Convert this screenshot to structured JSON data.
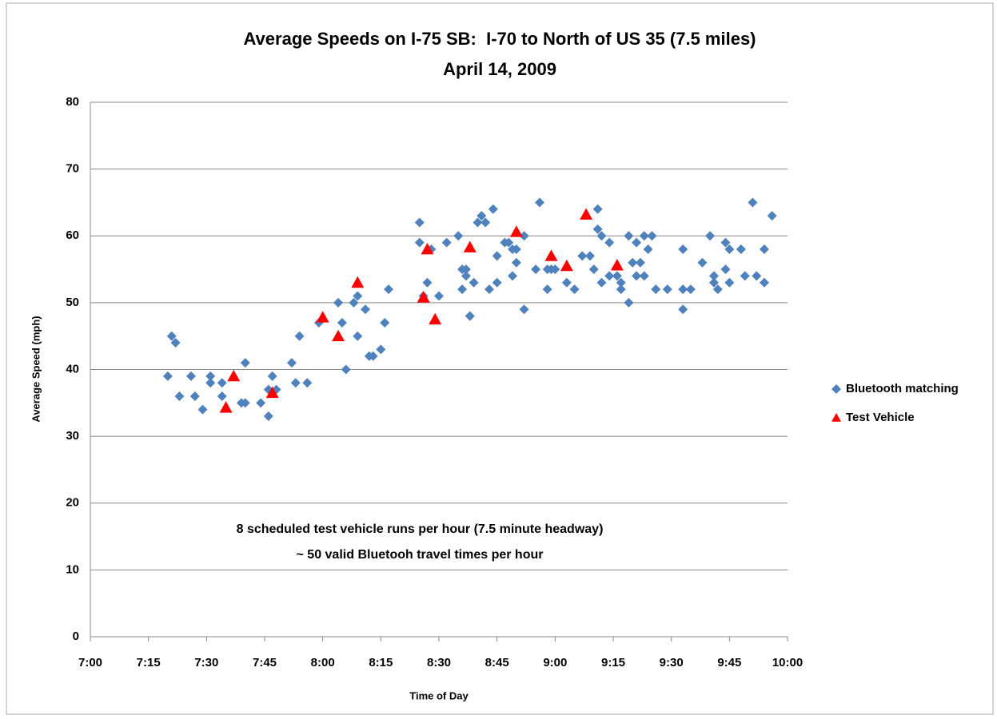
{
  "chart_data": {
    "type": "scatter",
    "title": "Average Speeds on I-75 SB:  I-70 to North of US 35 (7.5 miles)",
    "subtitle": "April 14, 2009",
    "x_label": "Time of Day",
    "y_label": "Average Speed (mph)",
    "annotations": [
      "8 scheduled test vehicle runs per hour (7.5 minute headway)",
      "~ 50 valid Bluetooh travel times per hour"
    ],
    "xlim": [
      420,
      600
    ],
    "xticks": [
      {
        "value": 420,
        "label": "7:00"
      },
      {
        "value": 435,
        "label": "7:15"
      },
      {
        "value": 450,
        "label": "7:30"
      },
      {
        "value": 465,
        "label": "7:45"
      },
      {
        "value": 480,
        "label": "8:00"
      },
      {
        "value": 495,
        "label": "8:15"
      },
      {
        "value": 510,
        "label": "8:30"
      },
      {
        "value": 525,
        "label": "8:45"
      },
      {
        "value": 540,
        "label": "9:00"
      },
      {
        "value": 555,
        "label": "9:15"
      },
      {
        "value": 570,
        "label": "9:30"
      },
      {
        "value": 585,
        "label": "9:45"
      },
      {
        "value": 600,
        "label": "10:00"
      }
    ],
    "ylim": [
      0,
      80
    ],
    "yticks": [
      0,
      10,
      20,
      30,
      40,
      50,
      60,
      70,
      80
    ],
    "grid": true,
    "legend": "right",
    "series": [
      {
        "name": "Bluetooth matching",
        "color": "#4f81bd",
        "marker": "diamond",
        "x": [
          440,
          441,
          442,
          443,
          446,
          447,
          449,
          451,
          451,
          454,
          454,
          459,
          460,
          460,
          464,
          466,
          466,
          467,
          468,
          472,
          473,
          474,
          476,
          479,
          484,
          485,
          486,
          488,
          489,
          489,
          491,
          492,
          493,
          495,
          496,
          497,
          505,
          505,
          506,
          507,
          508,
          510,
          512,
          515,
          516,
          516,
          517,
          517,
          518,
          518,
          519,
          520,
          521,
          522,
          523,
          524,
          525,
          525,
          527,
          528,
          529,
          529,
          530,
          530,
          532,
          532,
          535,
          536,
          538,
          538,
          539,
          540,
          543,
          545,
          547,
          549,
          550,
          551,
          551,
          552,
          552,
          554,
          554,
          556,
          557,
          557,
          559,
          559,
          560,
          561,
          561,
          562,
          563,
          563,
          564,
          565,
          566,
          569,
          573,
          573,
          573,
          575,
          578,
          580,
          581,
          581,
          582,
          584,
          584,
          585,
          585,
          588,
          589,
          591,
          592,
          594,
          594,
          596
        ],
        "values": [
          39,
          45,
          44,
          36,
          39,
          36,
          34,
          38,
          39,
          38,
          36,
          35,
          41,
          35,
          35,
          37,
          33,
          39,
          37,
          41,
          38,
          45,
          38,
          47,
          50,
          47,
          40,
          50,
          51,
          45,
          49,
          42,
          42,
          43,
          47,
          52,
          62,
          59,
          51,
          53,
          58,
          51,
          59,
          60,
          52,
          55,
          54,
          55,
          48,
          48,
          53,
          62,
          63,
          62,
          52,
          64,
          53,
          57,
          59,
          59,
          58,
          54,
          56,
          58,
          49,
          60,
          55,
          65,
          52,
          55,
          55,
          55,
          53,
          52,
          57,
          57,
          55,
          64,
          61,
          60,
          53,
          54,
          59,
          54,
          53,
          52,
          50,
          60,
          56,
          59,
          54,
          56,
          60,
          54,
          58,
          60,
          52,
          52,
          52,
          49,
          58,
          52,
          56,
          60,
          54,
          53,
          52,
          59,
          55,
          58,
          53,
          58,
          54,
          65,
          54,
          53,
          58,
          63
        ]
      },
      {
        "name": "Test Vehicle",
        "color": "#ff0000",
        "marker": "triangle",
        "x": [
          455,
          457,
          467,
          480,
          484,
          489,
          506,
          507,
          509,
          518,
          530,
          539,
          543,
          548,
          556
        ],
        "values": [
          34.3,
          39,
          36.5,
          47.8,
          45,
          53,
          50.8,
          58,
          47.5,
          58.3,
          60.6,
          57,
          55.5,
          63.2,
          55.6
        ]
      }
    ]
  }
}
